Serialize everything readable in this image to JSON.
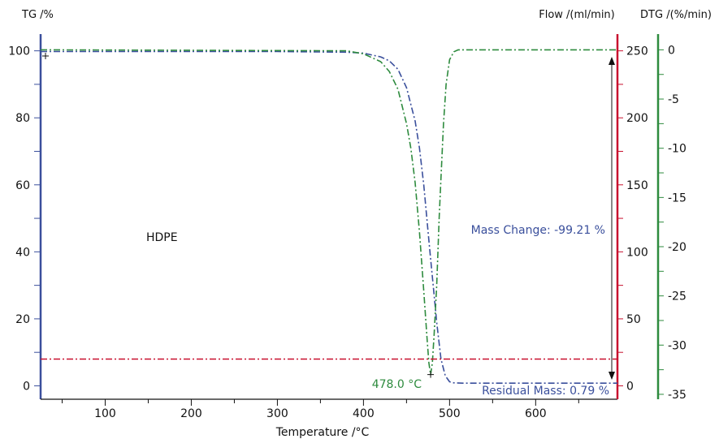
{
  "chart_data": {
    "type": "line",
    "x_axis": {
      "label": "Temperature /°C",
      "range": [
        25,
        695
      ],
      "ticks": [
        100,
        200,
        300,
        400,
        500,
        600
      ]
    },
    "y_axes": {
      "tg": {
        "label": "TG /%",
        "range": [
          -4,
          105
        ],
        "ticks": [
          0,
          20,
          40,
          60,
          80,
          100
        ],
        "color": "#3a4f9c"
      },
      "flow": {
        "label": "Flow /(ml/min)",
        "range": [
          -10,
          262.5
        ],
        "ticks": [
          0,
          50,
          100,
          150,
          200,
          250
        ],
        "color": "#c8102e"
      },
      "dtg": {
        "label": "DTG /(%/min)",
        "range": [
          -35.5,
          1.6
        ],
        "ticks": [
          0,
          -5,
          -10,
          -15,
          -20,
          -25,
          -30,
          -35
        ],
        "color": "#2e8b3e"
      }
    },
    "series": [
      {
        "axis": "tg",
        "color": "#3a4f9c",
        "x": [
          25,
          300,
          380,
          400,
          420,
          430,
          440,
          450,
          460,
          465,
          470,
          475,
          478,
          481,
          485,
          490,
          495,
          500,
          505,
          515,
          530,
          600,
          695
        ],
        "values": [
          99.8,
          99.8,
          99.6,
          99.3,
          98.2,
          97.0,
          94.5,
          89.0,
          79.0,
          71.0,
          60.0,
          46.0,
          38.0,
          30.0,
          19.0,
          8.0,
          3.0,
          1.2,
          0.9,
          0.8,
          0.8,
          0.8,
          0.8
        ]
      },
      {
        "axis": "dtg",
        "color": "#2e8b3e",
        "x": [
          25,
          380,
          400,
          420,
          430,
          440,
          450,
          455,
          460,
          465,
          470,
          474,
          476,
          478,
          480,
          482,
          485,
          488,
          490,
          493,
          496,
          500,
          505,
          510,
          695
        ],
        "values": [
          0,
          -0.1,
          -0.4,
          -1.2,
          -2.2,
          -4.0,
          -7.5,
          -10.0,
          -13.5,
          -18.5,
          -24.5,
          -29.5,
          -31.8,
          -33.0,
          -31.8,
          -29.0,
          -24.0,
          -17.0,
          -13.0,
          -7.5,
          -3.5,
          -1.0,
          -0.2,
          0,
          0
        ]
      },
      {
        "axis": "flow",
        "color": "#c8102e",
        "x": [
          25,
          695
        ],
        "values": [
          20,
          20
        ]
      }
    ],
    "annotations": {
      "mass_change": "Mass Change: -99.21 %",
      "residual_mass": "Residual Mass: 0.79 %",
      "peak": "478.0 °C",
      "peak_x": 478.0,
      "peak_y": -33.0,
      "sample": "HDPE"
    }
  }
}
